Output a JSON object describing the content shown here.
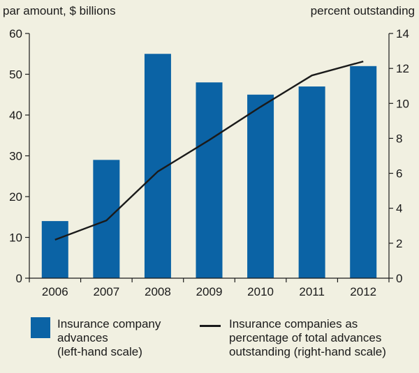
{
  "chart_data": {
    "type": "bar+line",
    "categories": [
      "2006",
      "2007",
      "2008",
      "2009",
      "2010",
      "2011",
      "2012"
    ],
    "series": [
      {
        "name": "Insurance company advances (left-hand scale)",
        "kind": "bar",
        "axis": "left",
        "values": [
          14,
          29,
          55,
          48,
          45,
          47,
          52
        ]
      },
      {
        "name": "Insurance companies as percentage of total advances outstanding (right-hand scale)",
        "kind": "line",
        "axis": "right",
        "values": [
          2.2,
          3.3,
          6.1,
          7.9,
          9.8,
          11.6,
          12.4
        ]
      }
    ],
    "left_axis": {
      "title": "par amount, $ billions",
      "ylim": [
        0,
        60
      ],
      "ticks": [
        "0",
        "10",
        "20",
        "30",
        "40",
        "50",
        "60"
      ]
    },
    "right_axis": {
      "title": "percent outstanding",
      "ylim": [
        0,
        14
      ],
      "ticks": [
        "0",
        "2",
        "4",
        "6",
        "8",
        "10",
        "12",
        "14"
      ]
    },
    "grid": false,
    "legend": {
      "placement": "bottom",
      "bar_lines": [
        "Insurance company",
        "advances",
        "(left-hand scale)"
      ],
      "line_lines": [
        "Insurance companies as",
        "percentage of total advances",
        "outstanding (right-hand scale)"
      ]
    },
    "colors": {
      "bar": "#0b63a5",
      "line": "#1a1a1a",
      "background": "#f1f0e1",
      "axis": "#1a1a1a"
    }
  }
}
